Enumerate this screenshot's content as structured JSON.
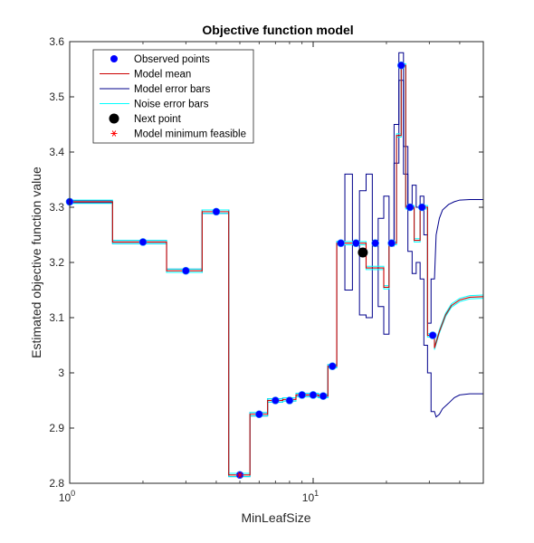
{
  "chart_data": {
    "type": "line",
    "title": "Objective function model",
    "xlabel": "MinLeafSize",
    "ylabel": "Estimated objective function value",
    "x_scale": "log",
    "xlim": [
      1,
      50
    ],
    "ylim": [
      2.8,
      3.6
    ],
    "x_ticks": [
      1,
      10
    ],
    "x_tick_labels": [
      {
        "base": "10",
        "exp": "0"
      },
      {
        "base": "10",
        "exp": "1"
      }
    ],
    "y_ticks": [
      2.8,
      2.9,
      3.0,
      3.1,
      3.2,
      3.3,
      3.4,
      3.5,
      3.6
    ],
    "y_tick_labels": [
      "2.8",
      "2.9",
      "3",
      "3.1",
      "3.2",
      "3.3",
      "3.4",
      "3.5",
      "3.6"
    ],
    "grid": false,
    "legend_position": "top-left",
    "legend": [
      {
        "label": "Observed points",
        "marker": "filled-circle",
        "color": "#0000ff"
      },
      {
        "label": "Model mean",
        "marker": "line",
        "color": "#cc0000"
      },
      {
        "label": "Model error bars",
        "marker": "line",
        "color": "#00008b"
      },
      {
        "label": "Noise error bars",
        "marker": "line",
        "color": "#00ffff"
      },
      {
        "label": "Next point",
        "marker": "filled-circle-large",
        "color": "#000000"
      },
      {
        "label": "Model minimum feasible",
        "marker": "asterisk",
        "color": "#ff0000"
      }
    ],
    "observed_points": [
      {
        "x": 1,
        "y": 3.31
      },
      {
        "x": 2,
        "y": 3.237
      },
      {
        "x": 3,
        "y": 3.185
      },
      {
        "x": 4,
        "y": 3.292
      },
      {
        "x": 5,
        "y": 2.815
      },
      {
        "x": 6,
        "y": 2.925
      },
      {
        "x": 7,
        "y": 2.95
      },
      {
        "x": 8,
        "y": 2.95
      },
      {
        "x": 9,
        "y": 2.96
      },
      {
        "x": 10,
        "y": 2.96
      },
      {
        "x": 11,
        "y": 2.958
      },
      {
        "x": 12,
        "y": 3.012
      },
      {
        "x": 13,
        "y": 3.235
      },
      {
        "x": 15,
        "y": 3.235
      },
      {
        "x": 18,
        "y": 3.235
      },
      {
        "x": 21,
        "y": 3.235
      },
      {
        "x": 23,
        "y": 3.557
      },
      {
        "x": 25,
        "y": 3.3
      },
      {
        "x": 28,
        "y": 3.3
      },
      {
        "x": 31,
        "y": 3.068
      }
    ],
    "next_point": {
      "x": 16,
      "y": 3.218
    },
    "model_minimum_feasible": {
      "x": 5,
      "y": 2.815
    },
    "series": [
      {
        "name": "Model mean",
        "color": "#cc0000",
        "x": [
          1,
          1.5,
          1.5,
          2.5,
          2.5,
          3.5,
          3.5,
          4.5,
          4.5,
          5.5,
          5.5,
          6.5,
          6.5,
          7.5,
          7.5,
          8.5,
          8.5,
          9.5,
          9.5,
          10.5,
          10.5,
          11.5,
          11.5,
          12.5,
          12.5,
          14,
          14,
          16.5,
          16.5,
          19.5,
          19.5,
          20.5,
          20.5,
          22,
          22,
          23,
          23,
          24,
          24,
          26,
          26,
          27.5,
          27.5,
          29.5,
          29.5,
          31.5,
          31.5,
          33,
          35,
          37,
          40,
          44,
          50
        ],
        "y": [
          3.31,
          3.31,
          3.237,
          3.237,
          3.185,
          3.185,
          3.292,
          3.292,
          2.815,
          2.815,
          2.925,
          2.925,
          2.95,
          2.95,
          2.952,
          2.952,
          2.96,
          2.96,
          2.96,
          2.96,
          2.958,
          2.958,
          3.012,
          3.012,
          3.235,
          3.235,
          3.235,
          3.235,
          3.19,
          3.19,
          3.155,
          3.155,
          3.235,
          3.235,
          3.43,
          3.43,
          3.557,
          3.557,
          3.3,
          3.3,
          3.24,
          3.24,
          3.3,
          3.3,
          3.068,
          3.068,
          3.045,
          3.075,
          3.105,
          3.122,
          3.132,
          3.137,
          3.138
        ]
      },
      {
        "name": "Model error bars (upper)",
        "color": "#00008b",
        "x": [
          1,
          1.5,
          1.5,
          2.5,
          2.5,
          3.5,
          3.5,
          4.5,
          4.5,
          5.5,
          5.5,
          6.5,
          6.5,
          7.5,
          7.5,
          8.5,
          8.5,
          9.5,
          9.5,
          10.5,
          10.5,
          11.5,
          11.5,
          12.5,
          12.5,
          13.5,
          13.5,
          14.5,
          14.5,
          15.5,
          15.5,
          16.5,
          16.5,
          17.5,
          17.5,
          18.5,
          18.5,
          19.5,
          19.5,
          20.5,
          20.5,
          21.5,
          21.5,
          22.5,
          22.5,
          23.5,
          23.5,
          24.5,
          24.5,
          25.5,
          25.5,
          26.5,
          26.5,
          27.5,
          27.5,
          28.5,
          28.5,
          29.5,
          29.5,
          30.5,
          30.5,
          31.5,
          32,
          33,
          34,
          36,
          38,
          40,
          44,
          50
        ],
        "y": [
          3.312,
          3.312,
          3.24,
          3.24,
          3.188,
          3.188,
          3.295,
          3.295,
          2.818,
          2.818,
          2.928,
          2.928,
          2.953,
          2.953,
          2.955,
          2.955,
          2.963,
          2.963,
          2.963,
          2.963,
          2.961,
          2.961,
          3.015,
          3.015,
          3.238,
          3.238,
          3.36,
          3.36,
          3.238,
          3.238,
          3.33,
          3.33,
          3.36,
          3.36,
          3.24,
          3.24,
          3.28,
          3.28,
          3.32,
          3.32,
          3.24,
          3.24,
          3.45,
          3.45,
          3.58,
          3.58,
          3.41,
          3.41,
          3.3,
          3.3,
          3.34,
          3.34,
          3.3,
          3.3,
          3.32,
          3.32,
          3.25,
          3.25,
          3.09,
          3.09,
          3.17,
          3.17,
          3.25,
          3.28,
          3.295,
          3.305,
          3.31,
          3.313,
          3.314,
          3.314
        ]
      },
      {
        "name": "Model error bars (lower)",
        "color": "#00008b",
        "x": [
          1,
          1.5,
          1.5,
          2.5,
          2.5,
          3.5,
          3.5,
          4.5,
          4.5,
          5.5,
          5.5,
          6.5,
          6.5,
          7.5,
          7.5,
          8.5,
          8.5,
          9.5,
          9.5,
          10.5,
          10.5,
          11.5,
          11.5,
          12.5,
          12.5,
          13.5,
          13.5,
          14.5,
          14.5,
          15.5,
          15.5,
          16.5,
          16.5,
          17.5,
          17.5,
          18.5,
          18.5,
          19.5,
          19.5,
          20.5,
          20.5,
          21.5,
          21.5,
          22.5,
          22.5,
          23.5,
          23.5,
          24.5,
          24.5,
          25.5,
          25.5,
          26.5,
          26.5,
          27.5,
          27.5,
          28.5,
          28.5,
          29.5,
          29.5,
          30.5,
          30.5,
          31.5,
          32,
          33,
          34,
          36,
          38,
          40,
          44,
          50
        ],
        "y": [
          3.308,
          3.308,
          3.234,
          3.234,
          3.182,
          3.182,
          3.289,
          3.289,
          2.812,
          2.812,
          2.922,
          2.922,
          2.947,
          2.947,
          2.949,
          2.949,
          2.957,
          2.957,
          2.957,
          2.957,
          2.955,
          2.955,
          3.009,
          3.009,
          3.232,
          3.232,
          3.15,
          3.15,
          3.232,
          3.232,
          3.105,
          3.105,
          3.1,
          3.1,
          3.23,
          3.23,
          3.12,
          3.12,
          3.07,
          3.07,
          3.23,
          3.23,
          3.38,
          3.38,
          3.53,
          3.53,
          3.36,
          3.36,
          3.22,
          3.22,
          3.18,
          3.18,
          3.2,
          3.2,
          3.17,
          3.17,
          3.05,
          3.05,
          3.0,
          3.0,
          2.93,
          2.93,
          2.92,
          2.925,
          2.935,
          2.945,
          2.955,
          2.96,
          2.962,
          2.962
        ]
      },
      {
        "name": "Noise error bars (upper)",
        "color": "#00ffff",
        "x": [
          1,
          1.5,
          1.5,
          2.5,
          2.5,
          3.5,
          3.5,
          4.5,
          4.5,
          5.5,
          5.5,
          6.5,
          6.5,
          7.5,
          7.5,
          8.5,
          8.5,
          9.5,
          9.5,
          10.5,
          10.5,
          11.5,
          11.5,
          12.5,
          12.5,
          14,
          14,
          16.5,
          16.5,
          19.5,
          19.5,
          20.5,
          20.5,
          22,
          22,
          23,
          23,
          24,
          24,
          26,
          26,
          27.5,
          27.5,
          29.5,
          29.5,
          31.5,
          31.5,
          33,
          35,
          37,
          40,
          44,
          50
        ],
        "y": [
          3.313,
          3.313,
          3.24,
          3.24,
          3.188,
          3.188,
          3.295,
          3.295,
          2.818,
          2.818,
          2.928,
          2.928,
          2.953,
          2.953,
          2.955,
          2.955,
          2.963,
          2.963,
          2.963,
          2.963,
          2.961,
          2.961,
          3.015,
          3.015,
          3.238,
          3.238,
          3.238,
          3.238,
          3.193,
          3.193,
          3.158,
          3.158,
          3.238,
          3.238,
          3.433,
          3.433,
          3.56,
          3.56,
          3.303,
          3.303,
          3.243,
          3.243,
          3.303,
          3.303,
          3.071,
          3.071,
          3.048,
          3.078,
          3.108,
          3.125,
          3.135,
          3.14,
          3.141
        ]
      },
      {
        "name": "Noise error bars (lower)",
        "color": "#00ffff",
        "x": [
          1,
          1.5,
          1.5,
          2.5,
          2.5,
          3.5,
          3.5,
          4.5,
          4.5,
          5.5,
          5.5,
          6.5,
          6.5,
          7.5,
          7.5,
          8.5,
          8.5,
          9.5,
          9.5,
          10.5,
          10.5,
          11.5,
          11.5,
          12.5,
          12.5,
          14,
          14,
          16.5,
          16.5,
          19.5,
          19.5,
          20.5,
          20.5,
          22,
          22,
          23,
          23,
          24,
          24,
          26,
          26,
          27.5,
          27.5,
          29.5,
          29.5,
          31.5,
          31.5,
          33,
          35,
          37,
          40,
          44,
          50
        ],
        "y": [
          3.307,
          3.307,
          3.234,
          3.234,
          3.182,
          3.182,
          3.289,
          3.289,
          2.812,
          2.812,
          2.922,
          2.922,
          2.947,
          2.947,
          2.949,
          2.949,
          2.957,
          2.957,
          2.957,
          2.957,
          2.955,
          2.955,
          3.009,
          3.009,
          3.232,
          3.232,
          3.232,
          3.232,
          3.187,
          3.187,
          3.152,
          3.152,
          3.232,
          3.232,
          3.427,
          3.427,
          3.554,
          3.554,
          3.297,
          3.297,
          3.237,
          3.237,
          3.297,
          3.297,
          3.065,
          3.065,
          3.042,
          3.072,
          3.102,
          3.119,
          3.129,
          3.134,
          3.135
        ]
      }
    ]
  }
}
